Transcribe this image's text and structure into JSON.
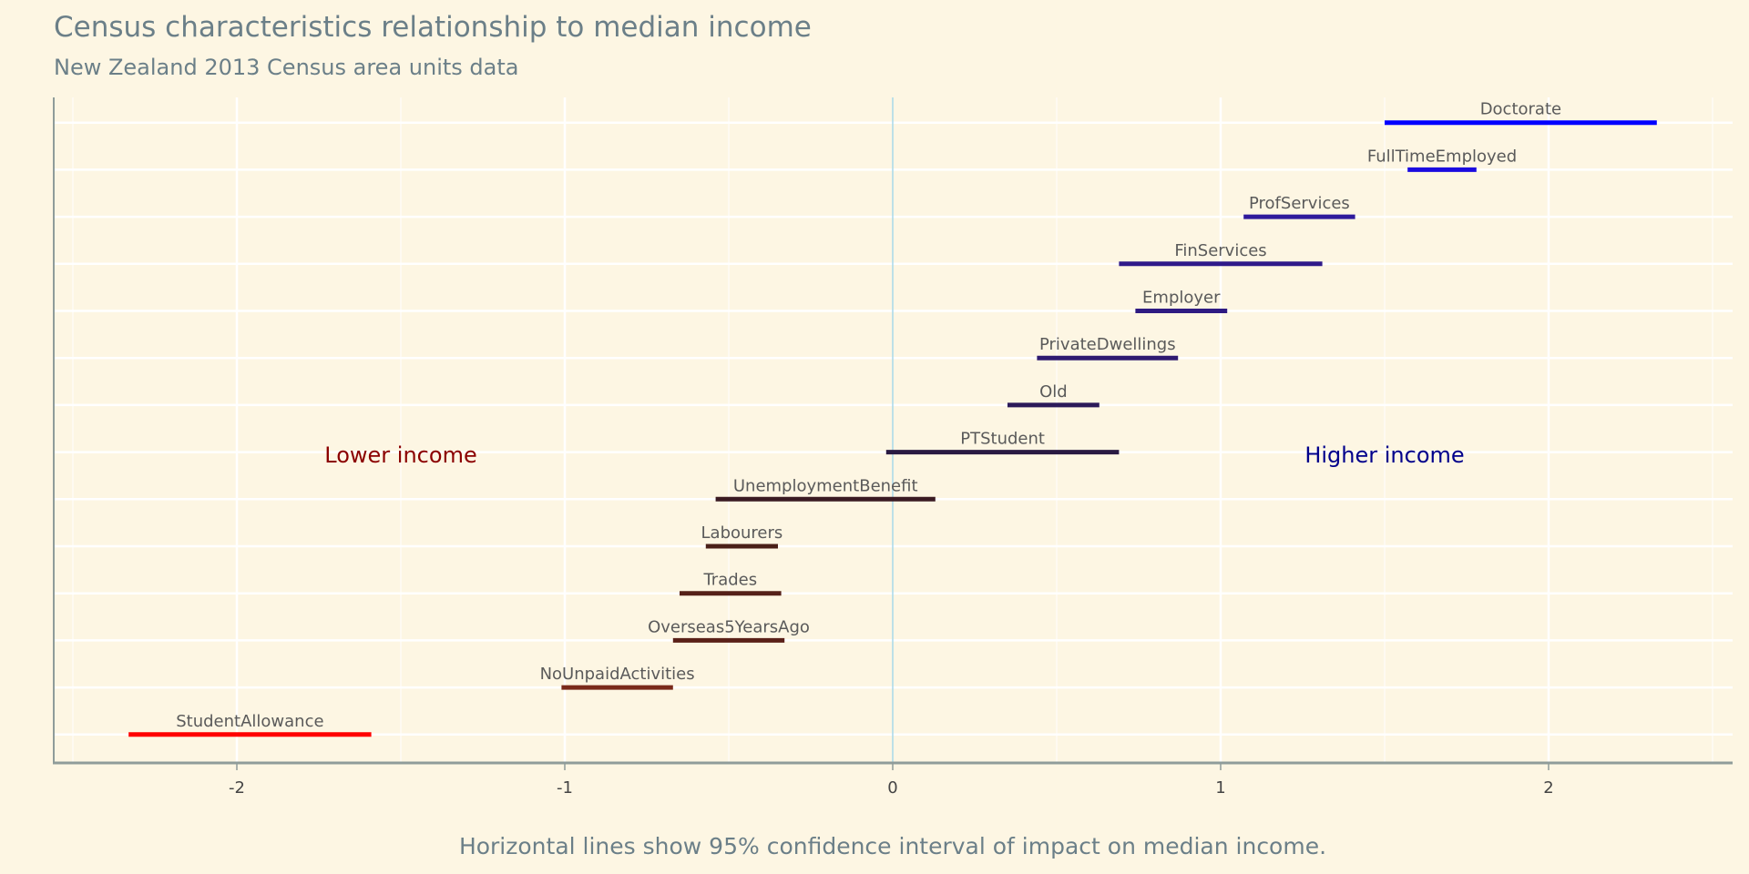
{
  "chart_data": {
    "type": "interval",
    "title": "Census characteristics relationship to median income",
    "subtitle": "New Zealand 2013 Census area units data",
    "caption": "Horizontal lines show 95% confidence interval of impact on median income.",
    "xlim": [
      -2.57,
      2.57
    ],
    "xticks": [
      -2,
      -1,
      0,
      1,
      2
    ],
    "xtick_labels": [
      "-2",
      "-1",
      "0",
      "1",
      "2"
    ],
    "grid": true,
    "annotations": [
      {
        "text": "Lower income",
        "x": -1.5,
        "color": "#8b0000"
      },
      {
        "text": "Higher income",
        "x": 1.5,
        "color": "#00008b"
      }
    ],
    "series": [
      {
        "name": "Doctorate",
        "low": 1.5,
        "high": 2.33,
        "color": "#0000ff"
      },
      {
        "name": "FullTimeEmployed",
        "low": 1.57,
        "high": 1.78,
        "color": "#1a0ae0"
      },
      {
        "name": "ProfServices",
        "low": 1.07,
        "high": 1.41,
        "color": "#2f1a9c"
      },
      {
        "name": "FinServices",
        "low": 0.69,
        "high": 1.31,
        "color": "#2f1a8a"
      },
      {
        "name": "Employer",
        "low": 0.74,
        "high": 1.02,
        "color": "#2e1a82"
      },
      {
        "name": "PrivateDwellings",
        "low": 0.44,
        "high": 0.87,
        "color": "#2e1a70"
      },
      {
        "name": "Old",
        "low": 0.35,
        "high": 0.63,
        "color": "#2b1a5a"
      },
      {
        "name": "PTStudent",
        "low": -0.02,
        "high": 0.69,
        "color": "#2a1a42"
      },
      {
        "name": "UnemploymentBenefit",
        "low": -0.54,
        "high": 0.13,
        "color": "#3a1a22"
      },
      {
        "name": "Labourers",
        "low": -0.57,
        "high": -0.35,
        "color": "#4a2018"
      },
      {
        "name": "Trades",
        "low": -0.65,
        "high": -0.34,
        "color": "#552018"
      },
      {
        "name": "Overseas5YearsAgo",
        "low": -0.67,
        "high": -0.33,
        "color": "#5a2018"
      },
      {
        "name": "NoUnpaidActivities",
        "low": -1.01,
        "high": -0.67,
        "color": "#7a2a1a"
      },
      {
        "name": "StudentAllowance",
        "low": -2.33,
        "high": -1.59,
        "color": "#ff0000"
      }
    ]
  }
}
